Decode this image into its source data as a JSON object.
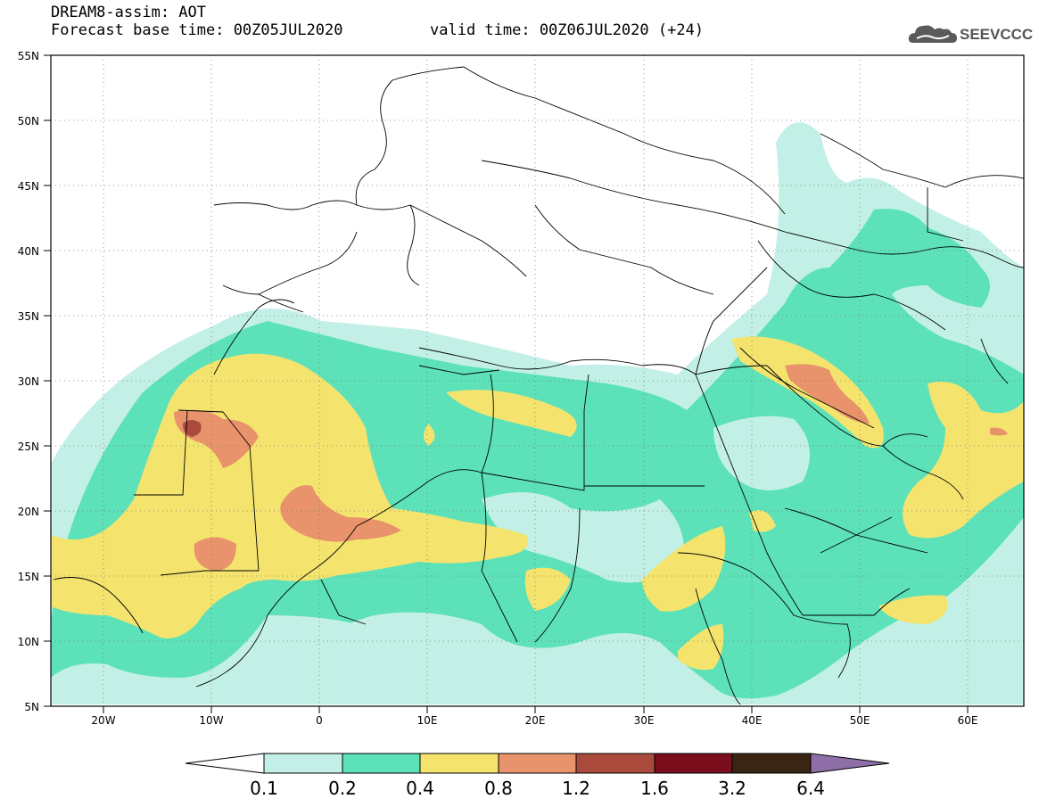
{
  "header": {
    "line1": "DREAM8-assim: AOT",
    "line2": "Forecast base time: 00Z05JUL2020",
    "valid": "valid time: 00Z06JUL2020 (+24)"
  },
  "logo": {
    "text": "SEEVCCC",
    "icon": "cloud-icon"
  },
  "map": {
    "lat_labels": [
      "55N",
      "50N",
      "45N",
      "40N",
      "35N",
      "30N",
      "25N",
      "20N",
      "15N",
      "10N",
      "5N"
    ],
    "lon_labels": [
      "20W",
      "10W",
      "0",
      "10E",
      "20E",
      "30E",
      "40E",
      "50E",
      "60E"
    ],
    "extent": {
      "lon": [
        -25,
        65
      ],
      "lat": [
        5,
        55
      ]
    },
    "grid": "dotted"
  },
  "colorbar": {
    "labels": [
      "0.1",
      "0.2",
      "0.4",
      "0.8",
      "1.2",
      "1.6",
      "3.2",
      "6.4"
    ],
    "colors": [
      "#c3f0e6",
      "#5ce1b9",
      "#f4e46e",
      "#e8936b",
      "#aa4a3c",
      "#7a0e1c",
      "#3a2414",
      "#8f6fa8"
    ]
  },
  "colors": {
    "c1": "#c3f0e6",
    "c2": "#5ce1b9",
    "c3": "#f4e46e",
    "c4": "#e8936b",
    "c5": "#aa4a3c"
  }
}
